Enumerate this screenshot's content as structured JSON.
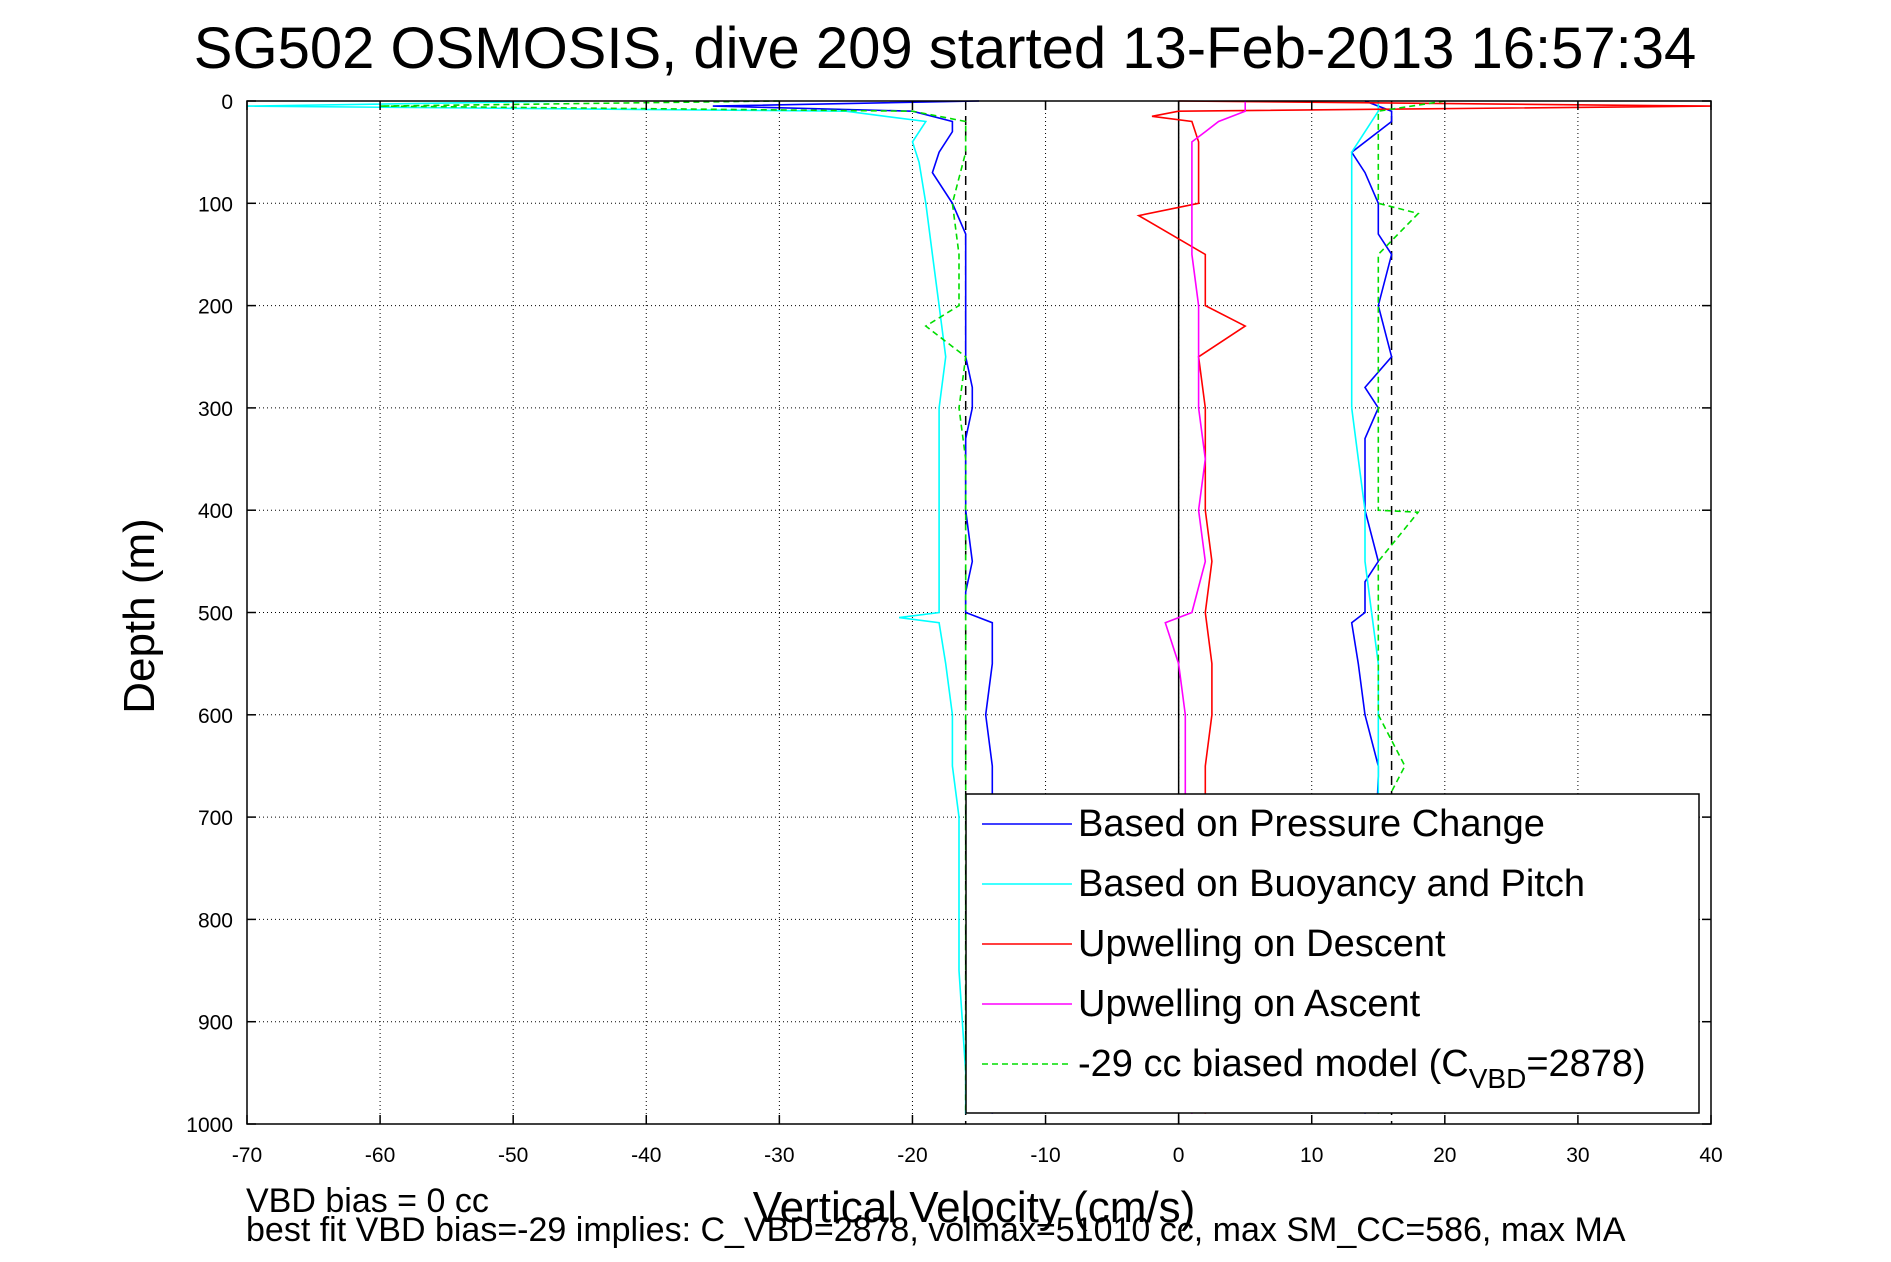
{
  "chart_data": {
    "type": "line",
    "title": "SG502 OSMOSIS, dive 209 started 13-Feb-2013 16:57:34",
    "xlabel": "Vertical Velocity (cm/s)",
    "ylabel": "Depth (m)",
    "xlim": [
      -70,
      40
    ],
    "ylim": [
      0,
      1000
    ],
    "y_reversed": true,
    "grid": true,
    "x_ticks": [
      -70,
      -60,
      -50,
      -40,
      -30,
      -20,
      -10,
      0,
      10,
      20,
      30,
      40
    ],
    "y_ticks": [
      0,
      100,
      200,
      300,
      400,
      500,
      600,
      700,
      800,
      900,
      1000
    ],
    "legend_position": "bottom-right",
    "reference_lines": {
      "x_solid": [
        0
      ],
      "x_dashed": [
        -16,
        16
      ]
    },
    "series": [
      {
        "name": "Based on Pressure Change",
        "color": "#0000ff",
        "style": "solid",
        "descent": {
          "depth": [
            0,
            5,
            10,
            20,
            30,
            50,
            70,
            100,
            130,
            150,
            180,
            200,
            220,
            250,
            280,
            300,
            330,
            360,
            400,
            450,
            480,
            500,
            510,
            550,
            600,
            650,
            660,
            990
          ],
          "velocity": [
            -15,
            -35,
            -20,
            -17,
            -17,
            -18,
            -18.5,
            -17,
            -16,
            -16,
            -16,
            -16,
            -16,
            -16,
            -15.5,
            -15.5,
            -16,
            -16,
            -16,
            -15.5,
            -16,
            -16,
            -14,
            -14,
            -14.5,
            -14,
            -14,
            -14
          ]
        },
        "ascent": {
          "depth": [
            0,
            10,
            20,
            50,
            70,
            100,
            130,
            150,
            200,
            250,
            280,
            300,
            330,
            350,
            400,
            450,
            470,
            500,
            510,
            550,
            600,
            650,
            660,
            990
          ],
          "velocity": [
            14,
            16,
            16,
            13,
            14,
            15,
            15,
            16,
            15,
            16,
            14,
            15,
            14,
            14,
            14,
            15,
            14,
            14,
            13,
            13.5,
            14,
            15,
            15,
            14
          ]
        }
      },
      {
        "name": "Based on Buoyancy and Pitch",
        "color": "#00ffff",
        "style": "solid",
        "descent": {
          "depth": [
            0,
            5,
            10,
            20,
            40,
            60,
            100,
            150,
            200,
            250,
            300,
            350,
            400,
            450,
            500,
            505,
            510,
            550,
            600,
            650,
            700,
            750,
            800,
            830,
            850,
            950,
            990
          ],
          "velocity": [
            -45,
            -70,
            -25,
            -19,
            -20,
            -19.5,
            -19,
            -18.5,
            -18,
            -17.5,
            -18,
            -18,
            -18,
            -18,
            -18,
            -21,
            -18,
            -17.5,
            -17,
            -17,
            -16.5,
            -16.5,
            -16.5,
            -16.5,
            -16.5,
            -16,
            -16
          ]
        },
        "ascent": {
          "depth": [
            0,
            10,
            30,
            50,
            100,
            150,
            200,
            250,
            300,
            350,
            400,
            450,
            500,
            550,
            600,
            650,
            700
          ],
          "velocity": [
            15,
            15,
            14,
            13,
            13,
            13,
            13,
            13,
            13,
            13.5,
            14,
            14,
            14.5,
            15,
            15,
            15,
            15
          ]
        }
      },
      {
        "name": "Upwelling on Descent",
        "color": "#ff0000",
        "style": "solid",
        "depth": [
          0,
          5,
          10,
          15,
          20,
          40,
          60,
          100,
          112,
          150,
          200,
          220,
          250,
          300,
          350,
          400,
          450,
          500,
          550,
          600,
          650,
          700,
          990
        ],
        "velocity": [
          0,
          40,
          0,
          -2,
          1,
          1.5,
          1.5,
          1.5,
          -3,
          2,
          2,
          5,
          1.5,
          2,
          2,
          2,
          2.5,
          2,
          2.5,
          2.5,
          2,
          2,
          2
        ]
      },
      {
        "name": "Upwelling on Ascent",
        "color": "#ff00ff",
        "style": "solid",
        "depth": [
          0,
          10,
          20,
          30,
          40,
          50,
          100,
          150,
          200,
          250,
          300,
          350,
          400,
          450,
          500,
          510,
          550,
          600,
          650,
          700,
          990
        ],
        "velocity": [
          5,
          5,
          3,
          2,
          1,
          1,
          1,
          1,
          1.5,
          1.5,
          1.5,
          2,
          1.5,
          2,
          1,
          -1,
          0,
          0.5,
          0.5,
          0.5,
          1
        ]
      },
      {
        "name": "-29 cc biased model (C",
        "name_sub": "VBD",
        "name_end": "=2878)",
        "color": "#00dd00",
        "style": "dashed",
        "descent": {
          "depth": [
            0,
            5,
            10,
            20,
            50,
            100,
            150,
            200,
            220,
            250,
            300,
            350,
            400,
            450,
            500,
            550,
            600,
            650,
            700,
            990
          ],
          "velocity": [
            -30,
            -60,
            -20,
            -16,
            -16,
            -17,
            -16.5,
            -16.5,
            -19,
            -16,
            -16.5,
            -16,
            -16,
            -16,
            -16,
            -16,
            -16,
            -16,
            -16,
            -16
          ]
        },
        "ascent": {
          "depth": [
            0,
            10,
            20,
            50,
            100,
            110,
            150,
            200,
            250,
            300,
            350,
            400,
            402,
            450,
            500,
            550,
            600,
            650,
            700,
            990
          ],
          "velocity": [
            20,
            15,
            15,
            15,
            15,
            18,
            15,
            15,
            15,
            15,
            15,
            15,
            18,
            15,
            15,
            15,
            15,
            17,
            15,
            15
          ]
        }
      }
    ],
    "annotations": [
      "VBD bias = 0 cc",
      "best fit VBD bias=-29 implies: C_VBD=2878, volmax=51010 cc, max SM_CC=586, max MA"
    ]
  }
}
